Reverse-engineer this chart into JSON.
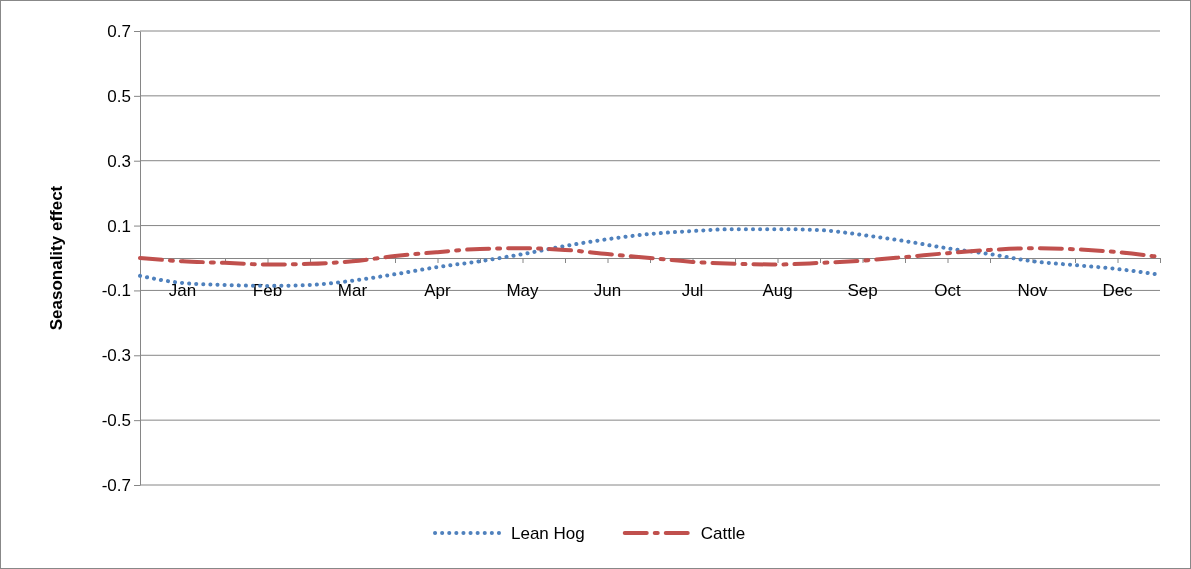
{
  "chart_data": {
    "type": "line",
    "ylabel": "Seasonality effect",
    "categories": [
      null,
      "Jan",
      null,
      "Feb",
      null,
      "Mar",
      null,
      "Apr",
      null,
      "May",
      null,
      "Jun",
      null,
      "Jul",
      null,
      "Aug",
      null,
      "Sep",
      null,
      "Oct",
      null,
      "Nov",
      null,
      "Dec",
      null
    ],
    "series": [
      {
        "name": "Lean Hog",
        "color": "#4f81bd",
        "line_style": "dotted",
        "values": [
          -0.055,
          -0.077,
          -0.083,
          -0.086,
          -0.083,
          -0.07,
          -0.05,
          -0.028,
          -0.01,
          0.012,
          0.037,
          0.058,
          0.074,
          0.083,
          0.089,
          0.089,
          0.086,
          0.071,
          0.052,
          0.03,
          0.012,
          -0.01,
          -0.022,
          -0.034,
          -0.052
        ]
      },
      {
        "name": "Cattle",
        "color": "#c0504d",
        "line_style": "dashed",
        "values": [
          0.0,
          -0.01,
          -0.015,
          -0.02,
          -0.018,
          -0.01,
          0.006,
          0.018,
          0.028,
          0.03,
          0.025,
          0.012,
          0.0,
          -0.012,
          -0.018,
          -0.02,
          -0.015,
          -0.008,
          0.003,
          0.015,
          0.025,
          0.03,
          0.027,
          0.018,
          0.003
        ]
      }
    ],
    "ylim": [
      -0.7,
      0.7
    ],
    "yticks": [
      -0.7,
      -0.5,
      -0.3,
      -0.1,
      0.1,
      0.3,
      0.5,
      0.7
    ],
    "grid": "y",
    "legend": "bottom",
    "marker": "none"
  }
}
